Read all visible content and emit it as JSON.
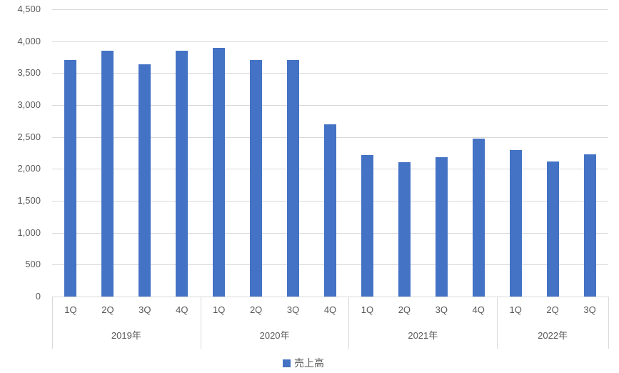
{
  "chart_data": {
    "type": "bar",
    "title": "",
    "xlabel": "",
    "ylabel": "",
    "ylim": [
      0,
      4500
    ],
    "ytick_step": 500,
    "ytick_labels": [
      "0",
      "500",
      "1,000",
      "1,500",
      "2,000",
      "2,500",
      "3,000",
      "3,500",
      "4,000",
      "4,500"
    ],
    "grid": true,
    "legend_position": "bottom",
    "series": [
      {
        "name": "売上高",
        "color": "#4472C4",
        "values": [
          3710,
          3850,
          3640,
          3850,
          3890,
          3710,
          3710,
          2700,
          2220,
          2100,
          2180,
          2470,
          2290,
          2120,
          2230
        ]
      }
    ],
    "groups": [
      {
        "label": "2019年",
        "quarters": [
          "1Q",
          "2Q",
          "3Q",
          "4Q"
        ]
      },
      {
        "label": "2020年",
        "quarters": [
          "1Q",
          "2Q",
          "3Q",
          "4Q"
        ]
      },
      {
        "label": "2021年",
        "quarters": [
          "1Q",
          "2Q",
          "3Q",
          "4Q"
        ]
      },
      {
        "label": "2022年",
        "quarters": [
          "1Q",
          "2Q",
          "3Q"
        ]
      }
    ]
  },
  "colors": {
    "bar": "#4472C4",
    "gridline": "#D9D9D9",
    "axis_text": "#595959",
    "background": "#FFFFFF"
  },
  "legend": {
    "items": [
      {
        "label": "売上高",
        "swatch_color": "#4472C4"
      }
    ]
  }
}
